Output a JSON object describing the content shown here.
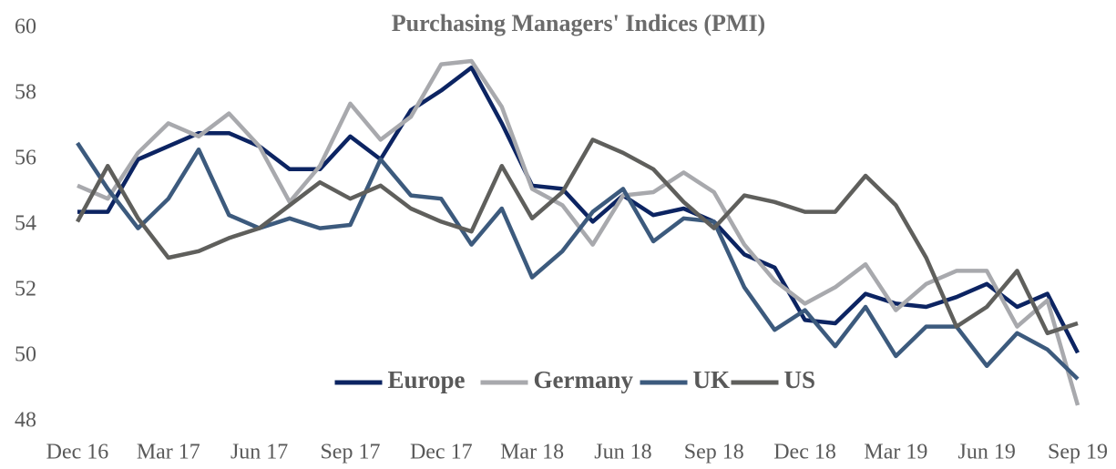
{
  "chart_data": {
    "type": "line",
    "title": "Purchasing Managers' Indices (PMI)",
    "categories": [
      "Dec 16",
      null,
      null,
      "Mar 17",
      null,
      null,
      "Jun 17",
      null,
      null,
      "Sep 17",
      null,
      null,
      "Dec 17",
      null,
      null,
      "Mar 18",
      null,
      null,
      "Jun 18",
      null,
      null,
      "Sep 18",
      null,
      null,
      "Dec 18",
      null,
      null,
      "Mar 19",
      null,
      null,
      "Jun 19",
      null,
      null,
      "Sep 19"
    ],
    "series": [
      {
        "name": "Europe",
        "color": "#0c2462",
        "values": [
          54.4,
          54.4,
          56.0,
          56.4,
          56.8,
          56.8,
          56.4,
          55.7,
          55.7,
          56.7,
          56.0,
          57.5,
          58.1,
          58.8,
          57.1,
          55.2,
          55.1,
          54.1,
          54.9,
          54.3,
          54.5,
          54.1,
          53.1,
          52.7,
          51.1,
          51.0,
          51.9,
          51.6,
          51.5,
          51.8,
          52.2,
          51.5,
          51.9,
          50.1
        ]
      },
      {
        "name": "Germany",
        "color": "#a8a9ad",
        "values": [
          55.2,
          54.8,
          56.2,
          57.1,
          56.7,
          57.4,
          56.4,
          54.7,
          55.8,
          57.7,
          56.6,
          57.3,
          58.9,
          59.0,
          57.6,
          55.1,
          54.6,
          53.4,
          54.9,
          55.0,
          55.6,
          55.0,
          53.4,
          52.3,
          51.6,
          52.1,
          52.8,
          51.4,
          52.2,
          52.6,
          52.6,
          50.9,
          51.7,
          48.5
        ]
      },
      {
        "name": "UK",
        "color": "#3c5a7d",
        "values": [
          56.5,
          55.1,
          53.9,
          54.8,
          56.3,
          54.3,
          53.9,
          54.2,
          53.9,
          54.0,
          56.0,
          54.9,
          54.8,
          53.4,
          54.5,
          52.4,
          53.2,
          54.4,
          55.1,
          53.5,
          54.2,
          54.1,
          52.1,
          50.8,
          51.4,
          50.3,
          51.5,
          50.0,
          50.9,
          50.9,
          49.7,
          50.7,
          50.2,
          49.3
        ]
      },
      {
        "name": "US",
        "color": "#5f5f5c",
        "values": [
          54.1,
          55.8,
          54.2,
          53.0,
          53.2,
          53.6,
          53.9,
          54.6,
          55.3,
          54.8,
          55.2,
          54.5,
          54.1,
          53.8,
          55.8,
          54.2,
          55.0,
          56.6,
          56.2,
          55.7,
          54.7,
          53.9,
          54.9,
          54.7,
          54.4,
          54.4,
          55.5,
          54.6,
          53.0,
          50.9,
          51.5,
          52.6,
          50.7,
          51.0
        ]
      }
    ],
    "ylim": [
      48,
      60
    ],
    "yticks": [
      48,
      50,
      52,
      54,
      56,
      58,
      60
    ],
    "grid": false,
    "legend": "bottom"
  }
}
